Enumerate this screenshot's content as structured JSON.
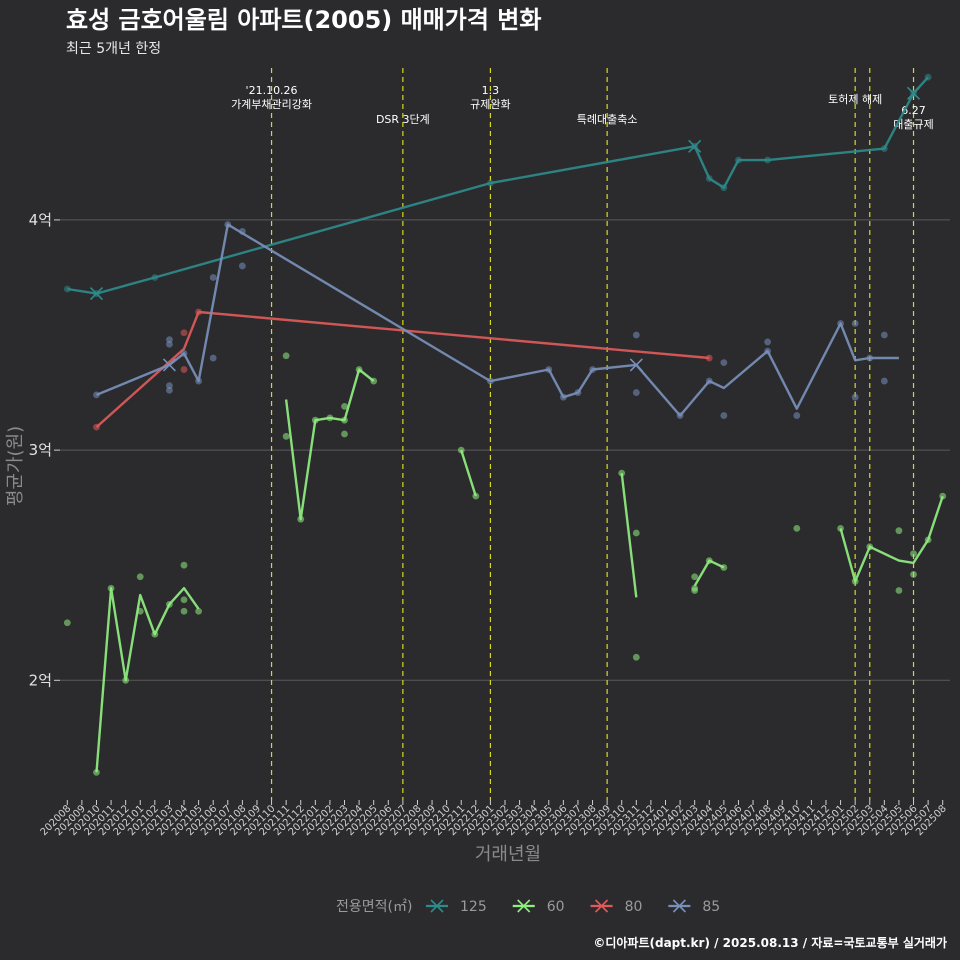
{
  "header": {
    "title": "효성 금호어울림 아파트(2005) 매매가격 변화",
    "subtitle": "최근 5개년 한정"
  },
  "caption": "©디아파트(dapt.kr) / 2025.08.13 / 자료=국토교통부 실거래가",
  "chart_data": {
    "type": "line",
    "xlabel": "거래년월",
    "ylabel": "평균가(원)",
    "x_categories": [
      "202008",
      "202009",
      "202010",
      "202011",
      "202012",
      "202101",
      "202102",
      "202103",
      "202104",
      "202105",
      "202106",
      "202107",
      "202108",
      "202109",
      "202110",
      "202111",
      "202112",
      "202201",
      "202202",
      "202203",
      "202204",
      "202205",
      "202206",
      "202207",
      "202208",
      "202209",
      "202210",
      "202211",
      "202212",
      "202301",
      "202302",
      "202303",
      "202304",
      "202305",
      "202306",
      "202307",
      "202308",
      "202309",
      "202310",
      "202311",
      "202312",
      "202401",
      "202402",
      "202403",
      "202404",
      "202405",
      "202406",
      "202407",
      "202408",
      "202409",
      "202410",
      "202411",
      "202412",
      "202501",
      "202502",
      "202503",
      "202504",
      "202505",
      "202506",
      "202507",
      "202508"
    ],
    "y_ticks": [
      {
        "value": 200000000,
        "label": "2억"
      },
      {
        "value": 300000000,
        "label": "3억"
      },
      {
        "value": 400000000,
        "label": "4억"
      }
    ],
    "ylim": [
      148000000,
      466000000
    ],
    "grid": "horizontal",
    "legend": {
      "title": "전용면적(㎡)",
      "placement": "bottom",
      "entries": [
        "125",
        "60",
        "80",
        "85"
      ]
    },
    "colors": {
      "125": "#2e8b8b",
      "60": "#90ee80",
      "80": "#e05a5a",
      "85": "#7890bb",
      "vline": "#d8d820"
    },
    "events": [
      {
        "x": "202110",
        "lines": [
          "'21.10.26",
          "가계부채관리강화"
        ],
        "row": "top"
      },
      {
        "x": "202207",
        "lines": [
          "DSR 3단계"
        ],
        "row": "mid"
      },
      {
        "x": "202301",
        "lines": [
          "1.3",
          "규제완화"
        ],
        "row": "top"
      },
      {
        "x": "202309",
        "lines": [
          "특례대출축소"
        ],
        "row": "mid"
      },
      {
        "x": "202502",
        "lines": [
          "토허제 해제"
        ],
        "row": "upper"
      },
      {
        "x": "202503",
        "lines": [],
        "row": "upper"
      },
      {
        "x": "202506",
        "lines": [
          "6.27",
          "대출규제"
        ],
        "row": "low"
      }
    ],
    "series": [
      {
        "name": "125",
        "line": [
          [
            "202008",
            370000000
          ],
          [
            "202010",
            368000000
          ],
          [
            "202102",
            375000000
          ],
          [
            "202301",
            416000000
          ],
          [
            "202403",
            432000000
          ],
          [
            "202404",
            418000000
          ],
          [
            "202405",
            414000000
          ],
          [
            "202406",
            426000000
          ],
          [
            "202408",
            426000000
          ],
          [
            "202504",
            431000000
          ],
          [
            "202506",
            455000000
          ],
          [
            "202507",
            462000000
          ]
        ],
        "points": [
          [
            "202008",
            370000000
          ],
          [
            "202010",
            368000000
          ],
          [
            "202102",
            375000000
          ],
          [
            "202301",
            416000000
          ],
          [
            "202403",
            432000000
          ],
          [
            "202404",
            418000000
          ],
          [
            "202405",
            414000000
          ],
          [
            "202406",
            426000000
          ],
          [
            "202408",
            426000000
          ],
          [
            "202504",
            431000000
          ],
          [
            "202506",
            455000000
          ],
          [
            "202507",
            462000000
          ]
        ],
        "cross": [
          "202010",
          "202403",
          "202506"
        ]
      },
      {
        "name": "60",
        "line": [
          [
            [
              "202010",
              160000000
            ],
            [
              "202011",
              240000000
            ],
            [
              "202012",
              200000000
            ],
            [
              "202101",
              237000000
            ],
            [
              "202102",
              220000000
            ],
            [
              "202103",
              233000000
            ],
            [
              "202104",
              240000000
            ],
            [
              "202105",
              231000000
            ]
          ],
          [
            [
              "202111",
              322000000
            ],
            [
              "202112",
              270000000
            ],
            [
              "202201",
              313000000
            ],
            [
              "202202",
              314000000
            ],
            [
              "202203",
              313000000
            ],
            [
              "202204",
              335000000
            ],
            [
              "202205",
              330000000
            ]
          ],
          [
            [
              "202211",
              300000000
            ],
            [
              "202212",
              280000000
            ]
          ],
          [
            [
              "202310",
              290000000
            ],
            [
              "202311",
              236000000
            ]
          ],
          [
            [
              "202403",
              241000000
            ],
            [
              "202404",
              252000000
            ],
            [
              "202405",
              249000000
            ]
          ],
          [
            [
              "202501",
              266000000
            ],
            [
              "202502",
              243000000
            ],
            [
              "202503",
              258000000
            ],
            [
              "202505",
              252000000
            ],
            [
              "202506",
              251000000
            ],
            [
              "202507",
              261000000
            ],
            [
              "202508",
              280000000
            ]
          ]
        ],
        "points": [
          [
            "202008",
            225000000
          ],
          [
            "202010",
            160000000
          ],
          [
            "202011",
            240000000
          ],
          [
            "202012",
            200000000
          ],
          [
            "202101",
            245000000
          ],
          [
            "202101",
            230000000
          ],
          [
            "202102",
            220000000
          ],
          [
            "202103",
            233000000
          ],
          [
            "202104",
            250000000
          ],
          [
            "202104",
            235000000
          ],
          [
            "202104",
            230000000
          ],
          [
            "202105",
            230000000
          ],
          [
            "202111",
            341000000
          ],
          [
            "202111",
            306000000
          ],
          [
            "202112",
            270000000
          ],
          [
            "202201",
            313000000
          ],
          [
            "202202",
            314000000
          ],
          [
            "202203",
            313000000
          ],
          [
            "202203",
            319000000
          ],
          [
            "202203",
            307000000
          ],
          [
            "202204",
            335000000
          ],
          [
            "202205",
            330000000
          ],
          [
            "202211",
            300000000
          ],
          [
            "202212",
            280000000
          ],
          [
            "202310",
            290000000
          ],
          [
            "202311",
            264000000
          ],
          [
            "202311",
            210000000
          ],
          [
            "202403",
            245000000
          ],
          [
            "202403",
            240000000
          ],
          [
            "202403",
            239000000
          ],
          [
            "202404",
            252000000
          ],
          [
            "202405",
            249000000
          ],
          [
            "202410",
            266000000
          ],
          [
            "202501",
            266000000
          ],
          [
            "202502",
            243000000
          ],
          [
            "202503",
            258000000
          ],
          [
            "202505",
            265000000
          ],
          [
            "202505",
            239000000
          ],
          [
            "202506",
            255000000
          ],
          [
            "202506",
            246000000
          ],
          [
            "202507",
            261000000
          ],
          [
            "202508",
            280000000
          ]
        ],
        "cross": []
      },
      {
        "name": "80",
        "line": [
          [
            "202010",
            310000000
          ],
          [
            "202104",
            344000000
          ],
          [
            "202105",
            360000000
          ],
          [
            "202404",
            340000000
          ]
        ],
        "points": [
          [
            "202010",
            310000000
          ],
          [
            "202104",
            351000000
          ],
          [
            "202104",
            335000000
          ],
          [
            "202105",
            360000000
          ],
          [
            "202404",
            340000000
          ]
        ],
        "cross": []
      },
      {
        "name": "85",
        "line": [
          [
            "202010",
            324000000
          ],
          [
            "202103",
            337000000
          ],
          [
            "202104",
            342000000
          ],
          [
            "202105",
            330000000
          ],
          [
            "202107",
            398000000
          ],
          [
            "202301",
            330000000
          ],
          [
            "202305",
            335000000
          ],
          [
            "202306",
            323000000
          ],
          [
            "202307",
            325000000
          ],
          [
            "202308",
            335000000
          ],
          [
            "202311",
            337000000
          ],
          [
            "202402",
            315000000
          ],
          [
            "202404",
            330000000
          ],
          [
            "202405",
            327000000
          ],
          [
            "202408",
            343000000
          ],
          [
            "202410",
            318000000
          ],
          [
            "202501",
            355000000
          ],
          [
            "202502",
            339000000
          ],
          [
            "202503",
            340000000
          ],
          [
            "202505",
            340000000
          ]
        ],
        "points": [
          [
            "202010",
            324000000
          ],
          [
            "202103",
            348000000
          ],
          [
            "202103",
            346000000
          ],
          [
            "202103",
            328000000
          ],
          [
            "202103",
            326000000
          ],
          [
            "202104",
            342000000
          ],
          [
            "202105",
            330000000
          ],
          [
            "202106",
            375000000
          ],
          [
            "202106",
            340000000
          ],
          [
            "202107",
            398000000
          ],
          [
            "202108",
            395000000
          ],
          [
            "202108",
            380000000
          ],
          [
            "202301",
            330000000
          ],
          [
            "202305",
            335000000
          ],
          [
            "202306",
            323000000
          ],
          [
            "202307",
            325000000
          ],
          [
            "202308",
            335000000
          ],
          [
            "202311",
            350000000
          ],
          [
            "202311",
            325000000
          ],
          [
            "202402",
            315000000
          ],
          [
            "202404",
            330000000
          ],
          [
            "202405",
            338000000
          ],
          [
            "202405",
            315000000
          ],
          [
            "202408",
            343000000
          ],
          [
            "202408",
            347000000
          ],
          [
            "202410",
            315000000
          ],
          [
            "202501",
            355000000
          ],
          [
            "202502",
            355000000
          ],
          [
            "202502",
            323000000
          ],
          [
            "202503",
            340000000
          ],
          [
            "202504",
            350000000
          ],
          [
            "202504",
            330000000
          ]
        ],
        "cross": [
          "202103",
          "202311"
        ]
      }
    ]
  }
}
